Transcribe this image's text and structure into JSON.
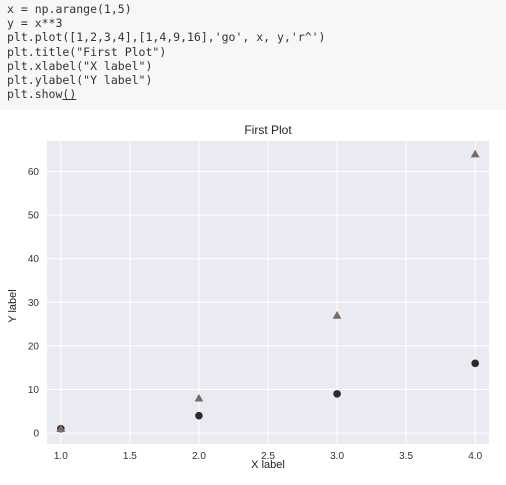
{
  "code": {
    "lines": [
      "x = np.arange(1,5)",
      "y = x**3",
      "plt.plot([1,2,3,4],[1,4,9,16],'go', x, y,'r^')",
      "plt.title(\"First Plot\")",
      "plt.xlabel(\"X label\")",
      "plt.ylabel(\"Y label\")",
      "plt.show()"
    ]
  },
  "chart_data": {
    "type": "scatter",
    "title": "First Plot",
    "xlabel": "X label",
    "ylabel": "Y label",
    "xlim": [
      0.9,
      4.1
    ],
    "ylim": [
      -2.5,
      67
    ],
    "xticks": [
      1.0,
      1.5,
      2.0,
      2.5,
      3.0,
      3.5,
      4.0
    ],
    "xtick_labels": [
      "1.0",
      "1.5",
      "2.0",
      "2.5",
      "3.0",
      "3.5",
      "4.0"
    ],
    "yticks": [
      0,
      10,
      20,
      30,
      40,
      50,
      60
    ],
    "ytick_labels": [
      "0",
      "10",
      "20",
      "30",
      "40",
      "50",
      "60"
    ],
    "grid": true,
    "series": [
      {
        "marker": "circle",
        "color": "#2b2b2b",
        "x": [
          1,
          2,
          3,
          4
        ],
        "y": [
          1,
          4,
          9,
          16
        ]
      },
      {
        "marker": "triangle",
        "color": "#7a6a66",
        "x": [
          1,
          2,
          3,
          4
        ],
        "y": [
          1,
          8,
          27,
          64
        ]
      }
    ],
    "colors": {
      "background": "#eaeaf2",
      "grid": "#ffffff"
    }
  }
}
